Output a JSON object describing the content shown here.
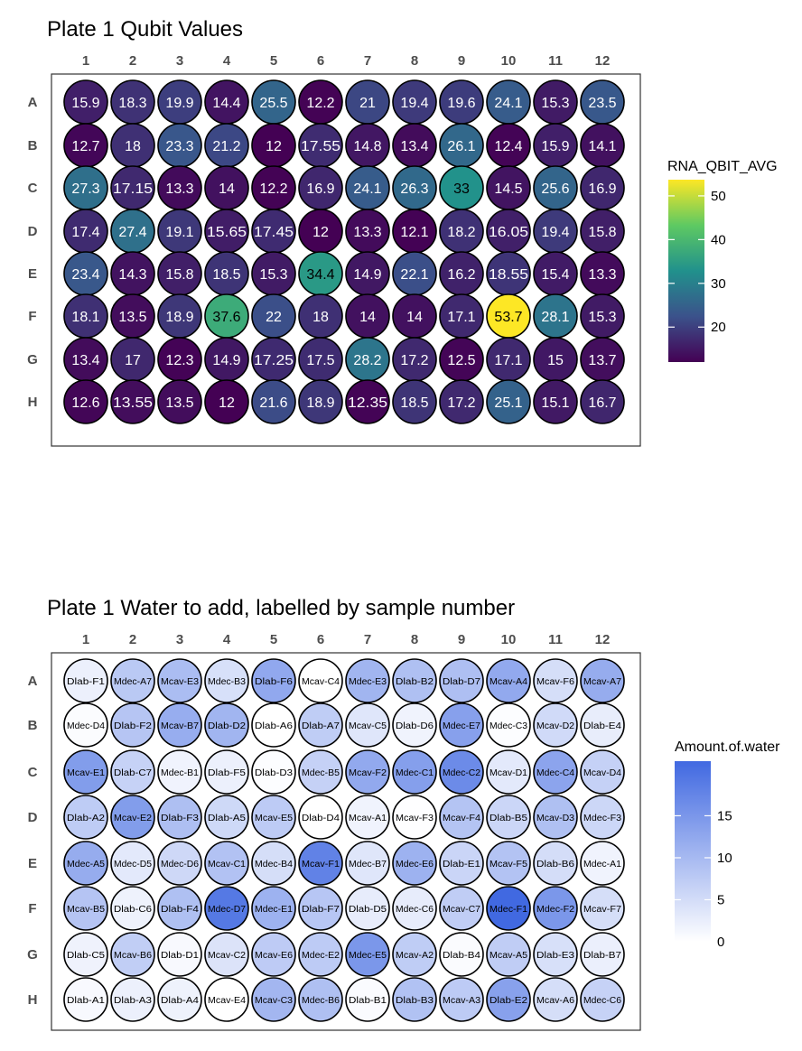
{
  "chart_data": [
    {
      "type": "heatmap",
      "title": "Plate 1 Qubit Values",
      "columns": [
        "1",
        "2",
        "3",
        "4",
        "5",
        "6",
        "7",
        "8",
        "9",
        "10",
        "11",
        "12"
      ],
      "rows": [
        "A",
        "B",
        "C",
        "D",
        "E",
        "F",
        "G",
        "H"
      ],
      "cell_labels": [
        [
          "15.9",
          "18.3",
          "19.9",
          "14.4",
          "25.5",
          "12.2",
          "21",
          "19.4",
          "19.6",
          "24.1",
          "15.3",
          "23.5"
        ],
        [
          "12.7",
          "18",
          "23.3",
          "21.2",
          "12",
          "17.55",
          "14.8",
          "13.4",
          "26.1",
          "12.4",
          "15.9",
          "14.1"
        ],
        [
          "27.3",
          "17.15",
          "13.3",
          "14",
          "12.2",
          "16.9",
          "24.1",
          "26.3",
          "33",
          "14.5",
          "25.6",
          "16.9"
        ],
        [
          "17.4",
          "27.4",
          "19.1",
          "15.65",
          "17.45",
          "12",
          "13.3",
          "12.1",
          "18.2",
          "16.05",
          "19.4",
          "15.8"
        ],
        [
          "23.4",
          "14.3",
          "15.8",
          "18.5",
          "15.3",
          "34.4",
          "14.9",
          "22.1",
          "16.2",
          "18.55",
          "15.4",
          "13.3"
        ],
        [
          "18.1",
          "13.5",
          "18.9",
          "37.6",
          "22",
          "18",
          "14",
          "14",
          "17.1",
          "53.7",
          "28.1",
          "15.3"
        ],
        [
          "13.4",
          "17",
          "12.3",
          "14.9",
          "17.25",
          "17.5",
          "28.2",
          "17.2",
          "12.5",
          "17.1",
          "15",
          "13.7"
        ],
        [
          "12.6",
          "13.55",
          "13.5",
          "12",
          "21.6",
          "18.9",
          "12.35",
          "18.5",
          "17.2",
          "25.1",
          "15.1",
          "16.7"
        ]
      ],
      "legend": {
        "title": "RNA_QBIT_AVG",
        "ticks": [
          "20",
          "30",
          "40",
          "50"
        ],
        "range": [
          12,
          53.7
        ],
        "colormap": "viridis",
        "placement": "right"
      }
    },
    {
      "type": "heatmap",
      "title": "Plate 1 Water to add, labelled by sample number",
      "columns": [
        "1",
        "2",
        "3",
        "4",
        "5",
        "6",
        "7",
        "8",
        "9",
        "10",
        "11",
        "12"
      ],
      "rows": [
        "A",
        "B",
        "C",
        "D",
        "E",
        "F",
        "G",
        "H"
      ],
      "cell_labels": [
        [
          "Dlab-F1",
          "Mdec-A7",
          "Mcav-E3",
          "Mdec-B3",
          "Dlab-F6",
          "Mcav-C4",
          "Mdec-E3",
          "Dlab-B2",
          "Dlab-D7",
          "Mcav-A4",
          "Mcav-F6",
          "Mcav-A7"
        ],
        [
          "Mdec-D4",
          "Dlab-F2",
          "Mcav-B7",
          "Dlab-D2",
          "Dlab-A6",
          "Dlab-A7",
          "Mcav-C5",
          "Dlab-D6",
          "Mdec-E7",
          "Mdec-C3",
          "Mcav-D2",
          "Dlab-E4"
        ],
        [
          "Mcav-E1",
          "Dlab-C7",
          "Mdec-B1",
          "Dlab-F5",
          "Dlab-D3",
          "Mdec-B5",
          "Mcav-F2",
          "Mdec-C1",
          "Mdec-C2",
          "Mcav-D1",
          "Mdec-C4",
          "Mcav-D4"
        ],
        [
          "Dlab-A2",
          "Mcav-E2",
          "Dlab-F3",
          "Dlab-A5",
          "Mcav-E5",
          "Dlab-D4",
          "Mcav-A1",
          "Mcav-F3",
          "Mcav-F4",
          "Dlab-B5",
          "Mcav-D3",
          "Mdec-F3"
        ],
        [
          "Mdec-A5",
          "Mdec-D5",
          "Mdec-D6",
          "Mcav-C1",
          "Mdec-B4",
          "Mcav-F1",
          "Mdec-B7",
          "Mdec-E6",
          "Dlab-E1",
          "Mcav-F5",
          "Dlab-B6",
          "Mdec-A1"
        ],
        [
          "Mcav-B5",
          "Dlab-C6",
          "Dlab-F4",
          "Mdec-D7",
          "Mdec-E1",
          "Dlab-F7",
          "Dlab-D5",
          "Mdec-C6",
          "Mcav-C7",
          "Mdec-F1",
          "Mdec-F2",
          "Mcav-F7"
        ],
        [
          "Dlab-C5",
          "Mcav-B6",
          "Dlab-D1",
          "Mcav-C2",
          "Mcav-E6",
          "Mdec-E2",
          "Mdec-E5",
          "Mcav-A2",
          "Dlab-B4",
          "Mcav-A5",
          "Dlab-E3",
          "Dlab-B7"
        ],
        [
          "Dlab-A1",
          "Dlab-A3",
          "Dlab-A4",
          "Mcav-E4",
          "Mcav-C3",
          "Mdec-B6",
          "Dlab-B1",
          "Dlab-B3",
          "Mcav-A3",
          "Dlab-E2",
          "Mcav-A6",
          "Mdec-C6"
        ]
      ],
      "values": [
        [
          2.2,
          7.8,
          9.5,
          4.5,
          12.4,
          0,
          10.6,
          9,
          9.2,
          12.3,
          4.7,
          11.9
        ],
        [
          0.4,
          8.3,
          11.8,
          10.6,
          0,
          7.2,
          3.6,
          1.7,
          13.6,
          0.3,
          5.3,
          2.6
        ],
        [
          14.1,
          6.5,
          1.7,
          2.2,
          0.3,
          6.6,
          12.3,
          13.8,
          16.6,
          3.2,
          13,
          6.6
        ],
        [
          7.3,
          14.1,
          9.2,
          5.5,
          7.5,
          0,
          1.7,
          0.1,
          8.5,
          5.9,
          9,
          5.8
        ],
        [
          11.9,
          3.2,
          5.6,
          8.7,
          4.8,
          17.9,
          3.6,
          11.1,
          6,
          8.6,
          4.9,
          1.7
        ],
        [
          8.4,
          1.9,
          9,
          19.2,
          11.1,
          8.2,
          2.7,
          2.7,
          7.1,
          21.5,
          14.9,
          4.8
        ],
        [
          1.8,
          7,
          0.8,
          4,
          7.4,
          7.5,
          14.9,
          7.2,
          0.6,
          7.1,
          4.5,
          2.3
        ],
        [
          0.8,
          2.1,
          1.9,
          0,
          10.4,
          9.1,
          0.6,
          8.8,
          7.5,
          13.5,
          4.7,
          6.4
        ]
      ],
      "legend": {
        "title": "Amount.of.water",
        "ticks": [
          "0",
          "5",
          "10",
          "15"
        ],
        "range": [
          0,
          21.5
        ],
        "low_color": "#ffffff",
        "high_color": "#4169e1",
        "placement": "right"
      }
    }
  ]
}
